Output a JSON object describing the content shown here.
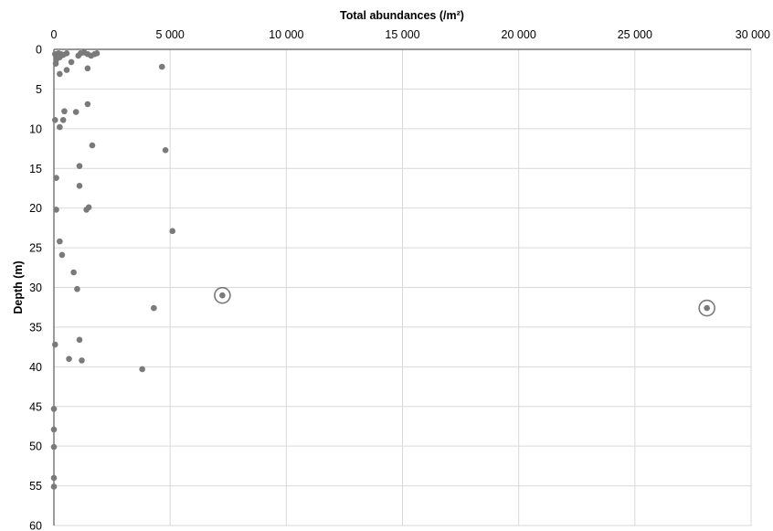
{
  "chart_data": {
    "type": "scatter",
    "xlabel": "Total abundances (/m²)",
    "ylabel": "Depth (m)",
    "xlim": [
      0,
      30000
    ],
    "ylim": [
      0,
      60
    ],
    "y_reversed": true,
    "x_axis_position": "top",
    "x_ticks": [
      0,
      5000,
      10000,
      15000,
      20000,
      25000,
      30000
    ],
    "x_tick_labels": [
      "0",
      "5 000",
      "10 000",
      "15 000",
      "20 000",
      "25 000",
      "30 000"
    ],
    "y_ticks": [
      0,
      5,
      10,
      15,
      20,
      25,
      30,
      35,
      40,
      45,
      50,
      55,
      60
    ],
    "y_tick_labels": [
      "0",
      "5",
      "10",
      "15",
      "20",
      "25",
      "30",
      "35",
      "40",
      "45",
      "50",
      "55",
      "60"
    ],
    "grid": "vertical and horizontal",
    "marker_color": "#7a7a7a",
    "points": [
      {
        "x": 50,
        "y": 0.6
      },
      {
        "x": 100,
        "y": 1.3
      },
      {
        "x": 150,
        "y": 0.8
      },
      {
        "x": 200,
        "y": 0.5
      },
      {
        "x": 250,
        "y": 1.0
      },
      {
        "x": 300,
        "y": 0.6
      },
      {
        "x": 400,
        "y": 0.7
      },
      {
        "x": 550,
        "y": 0.5
      },
      {
        "x": 1050,
        "y": 0.8
      },
      {
        "x": 1150,
        "y": 0.5
      },
      {
        "x": 1300,
        "y": 0.4
      },
      {
        "x": 1450,
        "y": 0.6
      },
      {
        "x": 1600,
        "y": 0.8
      },
      {
        "x": 1750,
        "y": 0.6
      },
      {
        "x": 1850,
        "y": 0.5
      },
      {
        "x": 80,
        "y": 1.8
      },
      {
        "x": 750,
        "y": 1.6
      },
      {
        "x": 4650,
        "y": 2.2
      },
      {
        "x": 550,
        "y": 2.6
      },
      {
        "x": 1450,
        "y": 2.4
      },
      {
        "x": 250,
        "y": 3.1
      },
      {
        "x": 1450,
        "y": 6.9
      },
      {
        "x": 450,
        "y": 7.8
      },
      {
        "x": 950,
        "y": 7.9
      },
      {
        "x": 50,
        "y": 8.9
      },
      {
        "x": 400,
        "y": 8.9
      },
      {
        "x": 250,
        "y": 9.8
      },
      {
        "x": 1650,
        "y": 12.1
      },
      {
        "x": 4800,
        "y": 12.7
      },
      {
        "x": 1100,
        "y": 14.7
      },
      {
        "x": 100,
        "y": 16.2
      },
      {
        "x": 1100,
        "y": 17.2
      },
      {
        "x": 1500,
        "y": 19.9
      },
      {
        "x": 1400,
        "y": 20.2
      },
      {
        "x": 100,
        "y": 20.2
      },
      {
        "x": 5100,
        "y": 22.9
      },
      {
        "x": 250,
        "y": 24.2
      },
      {
        "x": 350,
        "y": 25.9
      },
      {
        "x": 850,
        "y": 28.1
      },
      {
        "x": 1000,
        "y": 30.2
      },
      {
        "x": 7250,
        "y": 31.0
      },
      {
        "x": 4300,
        "y": 32.6
      },
      {
        "x": 28100,
        "y": 32.6
      },
      {
        "x": 1100,
        "y": 36.6
      },
      {
        "x": 50,
        "y": 37.2
      },
      {
        "x": 650,
        "y": 39.0
      },
      {
        "x": 1200,
        "y": 39.2
      },
      {
        "x": 3800,
        "y": 40.3
      },
      {
        "x": 0,
        "y": 45.3
      },
      {
        "x": 0,
        "y": 47.9
      },
      {
        "x": 0,
        "y": 50.1
      },
      {
        "x": 0,
        "y": 54.0
      },
      {
        "x": 0,
        "y": 55.1
      }
    ],
    "highlighted_points": [
      {
        "x": 7250,
        "y": 31.0
      },
      {
        "x": 28100,
        "y": 32.6
      }
    ]
  }
}
